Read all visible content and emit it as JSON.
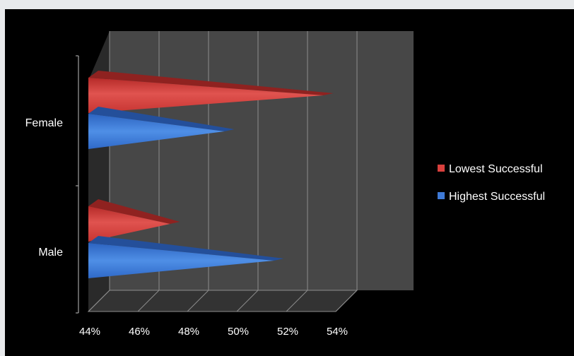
{
  "chart_data": {
    "type": "bar",
    "orientation": "horizontal",
    "style": "3d-cone",
    "categories": [
      "Female",
      "Male"
    ],
    "series": [
      {
        "name": "Lowest Successful",
        "values": [
          53.5,
          47.3
        ],
        "color": "#d9403d"
      },
      {
        "name": "Highest Successful",
        "values": [
          49.5,
          51.5
        ],
        "color": "#3f7ad6"
      }
    ],
    "x_ticks": [
      "44%",
      "46%",
      "48%",
      "50%",
      "52%",
      "54%"
    ],
    "xlim": [
      44,
      54
    ],
    "x_unit": "%",
    "grid": "vertical",
    "legend_position": "right",
    "background": "#000000",
    "wall_color": "#474747",
    "grid_color": "#8c8c8c"
  }
}
